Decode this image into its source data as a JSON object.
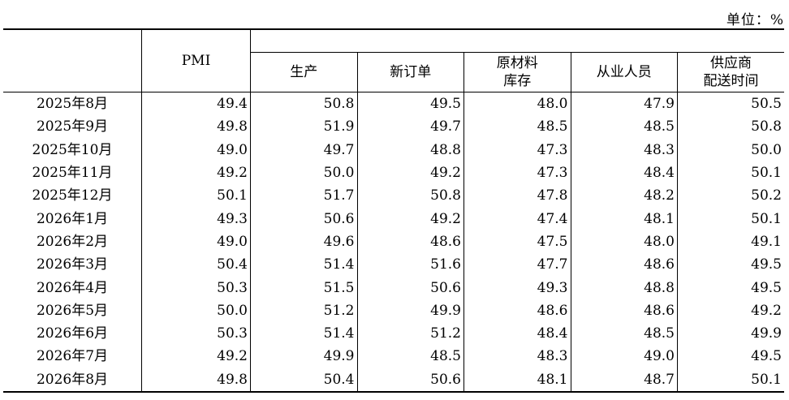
{
  "unit_label": "单位：%",
  "headers": {
    "pmi": "PMI",
    "production": "生产",
    "new_orders": "新订单",
    "raw_material_line1": "原材料",
    "raw_material_line2": "库存",
    "employees": "从业人员",
    "supplier_line1": "供应商",
    "supplier_line2": "配送时间"
  },
  "rows": [
    {
      "month": "2025年8月",
      "pmi": "49.4",
      "production": "50.8",
      "new_orders": "49.5",
      "raw_material": "48.0",
      "employees": "47.9",
      "supplier": "50.5"
    },
    {
      "month": "2025年9月",
      "pmi": "49.8",
      "production": "51.9",
      "new_orders": "49.7",
      "raw_material": "48.5",
      "employees": "48.5",
      "supplier": "50.8"
    },
    {
      "month": "2025年10月",
      "pmi": "49.0",
      "production": "49.7",
      "new_orders": "48.8",
      "raw_material": "47.3",
      "employees": "48.3",
      "supplier": "50.0"
    },
    {
      "month": "2025年11月",
      "pmi": "49.2",
      "production": "50.0",
      "new_orders": "49.2",
      "raw_material": "47.3",
      "employees": "48.4",
      "supplier": "50.1"
    },
    {
      "month": "2025年12月",
      "pmi": "50.1",
      "production": "51.7",
      "new_orders": "50.8",
      "raw_material": "47.8",
      "employees": "48.2",
      "supplier": "50.2"
    },
    {
      "month": "2026年1月",
      "pmi": "49.3",
      "production": "50.6",
      "new_orders": "49.2",
      "raw_material": "47.4",
      "employees": "48.1",
      "supplier": "50.1"
    },
    {
      "month": "2026年2月",
      "pmi": "49.0",
      "production": "49.6",
      "new_orders": "48.6",
      "raw_material": "47.5",
      "employees": "48.0",
      "supplier": "49.1"
    },
    {
      "month": "2026年3月",
      "pmi": "50.4",
      "production": "51.4",
      "new_orders": "51.6",
      "raw_material": "47.7",
      "employees": "48.6",
      "supplier": "49.5"
    },
    {
      "month": "2026年4月",
      "pmi": "50.3",
      "production": "51.5",
      "new_orders": "50.6",
      "raw_material": "49.3",
      "employees": "48.8",
      "supplier": "49.5"
    },
    {
      "month": "2026年5月",
      "pmi": "50.0",
      "production": "51.2",
      "new_orders": "49.9",
      "raw_material": "48.6",
      "employees": "48.6",
      "supplier": "49.2"
    },
    {
      "month": "2026年6月",
      "pmi": "50.3",
      "production": "51.4",
      "new_orders": "51.2",
      "raw_material": "48.4",
      "employees": "48.5",
      "supplier": "49.9"
    },
    {
      "month": "2026年7月",
      "pmi": "49.2",
      "production": "49.9",
      "new_orders": "48.5",
      "raw_material": "48.3",
      "employees": "49.0",
      "supplier": "49.5"
    },
    {
      "month": "2026年8月",
      "pmi": "49.8",
      "production": "50.4",
      "new_orders": "50.6",
      "raw_material": "48.1",
      "employees": "48.7",
      "supplier": "50.1"
    }
  ]
}
